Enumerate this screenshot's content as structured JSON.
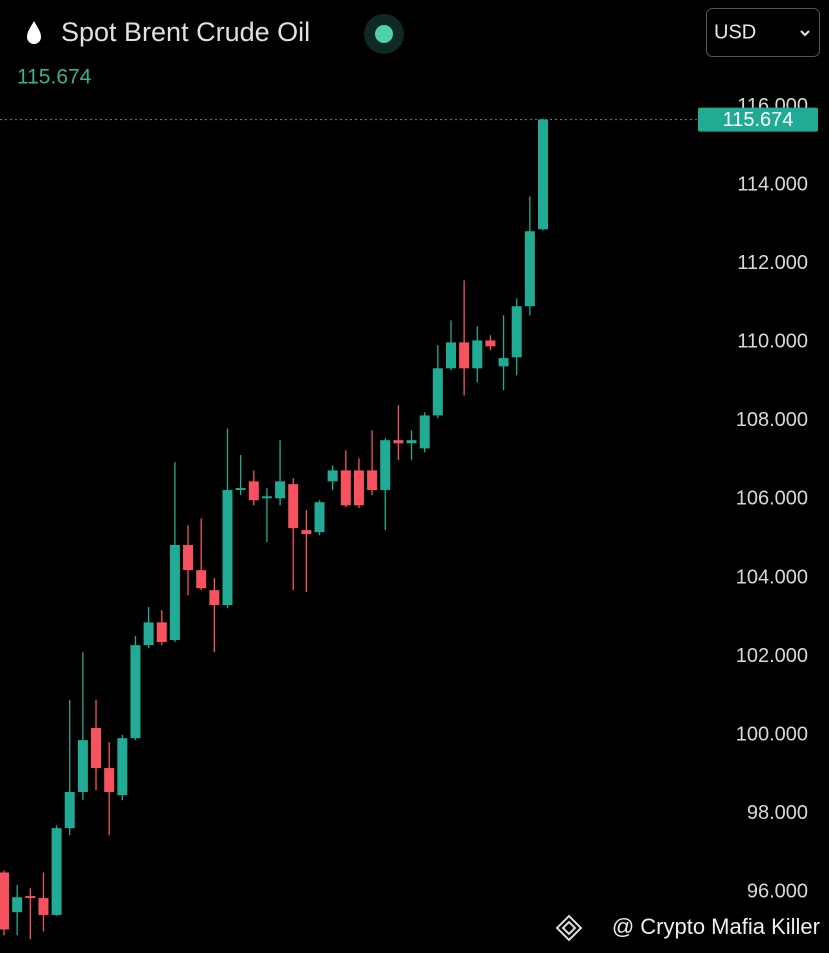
{
  "header": {
    "title": "Spot Brent Crude Oil",
    "currency": "USD"
  },
  "watermark": "@ Crypto Mafia Killer",
  "chart_data": {
    "type": "candlestick",
    "up_color": "#22ab94",
    "down_color": "#f7525f",
    "last_price": 115.674,
    "ylim": [
      94.45,
      116.3
    ],
    "yticks": [
      {
        "value": 96,
        "label": "96.000"
      },
      {
        "value": 98,
        "label": "98.000"
      },
      {
        "value": 100,
        "label": "100.000"
      },
      {
        "value": 102,
        "label": "102.000"
      },
      {
        "value": 104,
        "label": "104.000"
      },
      {
        "value": 106,
        "label": "106.000"
      },
      {
        "value": 108,
        "label": "108.000"
      },
      {
        "value": 110,
        "label": "110.000"
      },
      {
        "value": 112,
        "label": "112.000"
      },
      {
        "value": 114,
        "label": "114.000"
      },
      {
        "value": 116,
        "label": "116.000"
      }
    ],
    "open": [
      96.5,
      95.49,
      95.9,
      95.85,
      95.42,
      97.63,
      98.55,
      100.18,
      99.16,
      98.47,
      99.92,
      102.29,
      102.87,
      102.42,
      104.84,
      104.2,
      103.69,
      103.31,
      106.24,
      106.46,
      106.03,
      106.03,
      106.39,
      105.22,
      105.17,
      106.46,
      106.74,
      106.74,
      106.74,
      106.24,
      107.51,
      107.43,
      107.3,
      108.14,
      109.34,
      110.0,
      109.34,
      110.05,
      109.39,
      109.62,
      110.92,
      112.88
    ],
    "high": [
      96.55,
      96.18,
      96.1,
      96.5,
      97.7,
      100.9,
      102.11,
      100.9,
      99.82,
      100.0,
      102.52,
      103.26,
      103.18,
      106.95,
      105.34,
      105.52,
      104.0,
      107.81,
      107.13,
      106.74,
      106.29,
      107.51,
      106.54,
      105.73,
      105.98,
      106.87,
      107.25,
      107.05,
      107.76,
      107.56,
      108.4,
      107.76,
      108.22,
      109.93,
      110.56,
      111.58,
      110.41,
      110.18,
      110.69,
      111.12,
      113.72,
      115.7
    ],
    "low": [
      94.9,
      94.9,
      94.8,
      95.0,
      95.4,
      97.45,
      98.34,
      98.6,
      97.45,
      98.34,
      99.87,
      102.21,
      102.29,
      102.37,
      103.56,
      103.69,
      102.11,
      103.23,
      106.11,
      105.85,
      104.91,
      105.85,
      103.69,
      103.64,
      105.09,
      106.24,
      105.8,
      105.78,
      106.11,
      105.22,
      107.0,
      107.0,
      107.2,
      108.07,
      109.29,
      108.65,
      108.98,
      109.8,
      108.78,
      109.16,
      110.69,
      112.85
    ],
    "close": [
      95.05,
      95.87,
      95.85,
      95.42,
      97.63,
      98.55,
      99.87,
      99.16,
      98.55,
      99.92,
      102.29,
      102.87,
      102.37,
      104.84,
      104.2,
      103.74,
      103.31,
      106.24,
      106.29,
      105.98,
      106.08,
      106.46,
      105.27,
      105.12,
      105.93,
      106.74,
      105.85,
      105.85,
      106.24,
      107.51,
      107.43,
      107.51,
      108.14,
      109.34,
      110.0,
      109.34,
      110.05,
      109.9,
      109.6,
      110.92,
      112.83,
      115.674
    ]
  }
}
